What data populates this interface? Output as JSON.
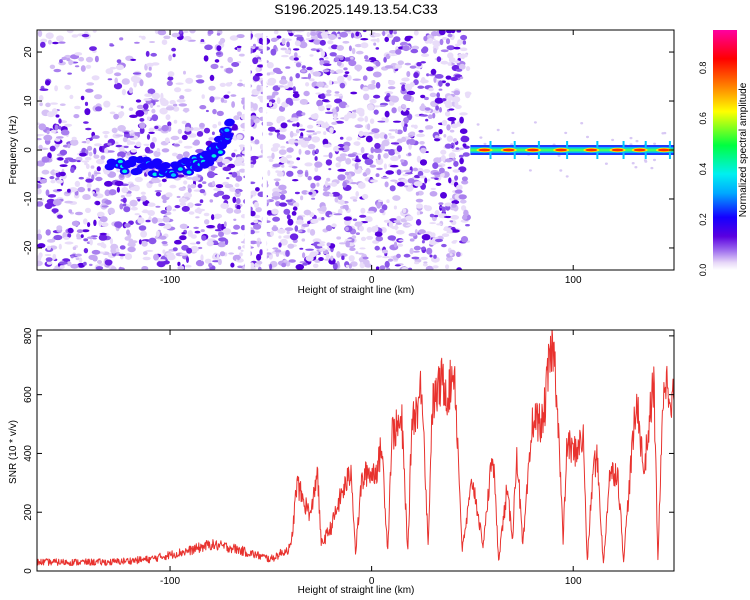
{
  "figure": {
    "title": "S196.2025.149.13.54.C33"
  },
  "colors": {
    "snr_line": "#e8322e",
    "spectrogram_hue_stops": [
      "#ffffff",
      "#d8c8f4",
      "#a070ee",
      "#5a00e0",
      "#1400ff",
      "#00a8ff",
      "#00f0f0",
      "#00ff40",
      "#ffff00",
      "#ff8800",
      "#ff0000",
      "#ff00a0"
    ]
  },
  "chart_data": [
    {
      "type": "heatmap",
      "name": "spectrogram",
      "xlabel": "Height of straight line (km)",
      "ylabel": "Frequency (Hz)",
      "xlim": [
        -166,
        150
      ],
      "ylim": [
        -24.5,
        24.5
      ],
      "xticks": [
        -100,
        0,
        100
      ],
      "yticks": [
        -20,
        -10,
        0,
        10,
        20
      ],
      "grid": false,
      "colorbar": {
        "label": "Normalized spectral amplitude",
        "range": [
          0.0,
          0.95
        ],
        "ticks": [
          "0.0",
          "0.2",
          "0.4",
          "0.6",
          "0.8"
        ]
      },
      "features": {
        "noise_region_x": [
          -166,
          48
        ],
        "data_gaps_x": [
          [
            -63,
            -60
          ],
          [
            -54,
            -52
          ]
        ],
        "tone_freq_hz": 0,
        "tone_region_x": [
          49,
          150
        ],
        "tone_peak_x": [
          56,
          68,
          80,
          94,
          109,
          122,
          133,
          145
        ],
        "sweep_track": [
          [
            -130,
            -3
          ],
          [
            -115,
            -3
          ],
          [
            -100,
            -4
          ],
          [
            -88,
            -3
          ],
          [
            -80,
            -1
          ],
          [
            -75,
            1
          ],
          [
            -70,
            5
          ]
        ]
      }
    },
    {
      "type": "line",
      "name": "snr",
      "xlabel": "Height of straight line (km)",
      "ylabel": "SNR (10 * v/v)",
      "xlim": [
        -166,
        150
      ],
      "ylim": [
        0,
        820
      ],
      "xticks": [
        -100,
        0,
        100
      ],
      "yticks": [
        0,
        200,
        400,
        600,
        800
      ],
      "grid": false,
      "x": [
        -166,
        -150,
        -130,
        -110,
        -100,
        -90,
        -80,
        -70,
        -60,
        -50,
        -40,
        -37,
        -34,
        -30,
        -27,
        -25,
        -20,
        -15,
        -10,
        -8,
        -5,
        -2,
        0,
        3,
        5,
        8,
        10,
        15,
        18,
        20,
        23,
        25,
        28,
        30,
        35,
        38,
        41,
        45,
        50,
        53,
        55,
        58,
        60,
        63,
        67,
        70,
        72,
        75,
        80,
        85,
        88,
        90,
        92,
        95,
        97,
        100,
        105,
        107,
        110,
        112,
        115,
        118,
        122,
        125,
        130,
        132,
        135,
        140,
        142,
        145,
        150
      ],
      "y": [
        30,
        30,
        30,
        40,
        55,
        70,
        90,
        80,
        60,
        40,
        80,
        300,
        240,
        190,
        350,
        90,
        150,
        260,
        340,
        60,
        300,
        340,
        330,
        350,
        430,
        70,
        470,
        500,
        60,
        520,
        560,
        650,
        80,
        560,
        650,
        600,
        700,
        70,
        310,
        190,
        80,
        260,
        420,
        40,
        270,
        120,
        410,
        80,
        520,
        500,
        700,
        770,
        600,
        100,
        440,
        400,
        450,
        30,
        360,
        380,
        20,
        330,
        340,
        40,
        480,
        570,
        330,
        650,
        40,
        660,
        580
      ]
    }
  ]
}
